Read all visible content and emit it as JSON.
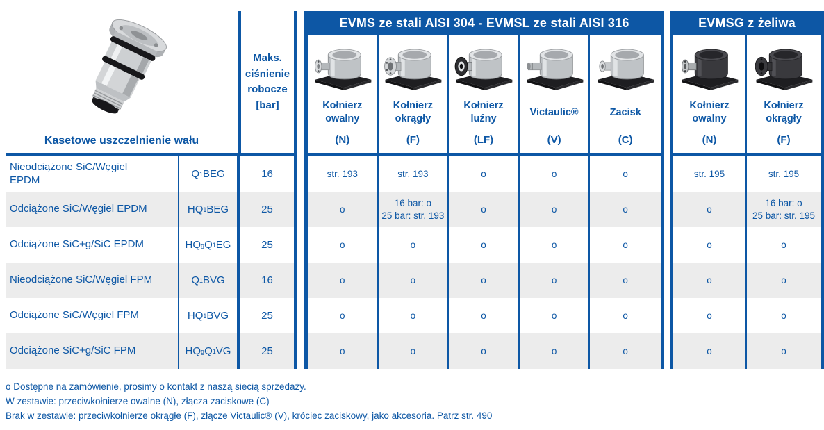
{
  "colors": {
    "brand_blue": "#0d57a5",
    "row_alt_gray": "#ececec",
    "band_text": "#ffffff"
  },
  "left_table": {
    "title": "Kasetowe uszczelnienie wału",
    "pressure_header": "Maks.\nciśnienie\nrobocze\n[bar]",
    "seal_icon": "cartridge-seal-icon"
  },
  "groups": [
    {
      "title": "EVMS ze stali AISI 304 - EVMSL ze stali AISI 316",
      "columns": [
        {
          "label": "Kołnierz\nowalny",
          "code": "(N)",
          "icon": "pump-casing-oval-flange-steel-icon"
        },
        {
          "label": "Kołnierz\nokrągły",
          "code": "(F)",
          "icon": "pump-casing-round-flange-steel-icon"
        },
        {
          "label": "Kołnierz\nluźny",
          "code": "(LF)",
          "icon": "pump-casing-loose-flange-steel-icon"
        },
        {
          "label": "Victaulic®",
          "code": "(V)",
          "icon": "pump-casing-victaulic-steel-icon"
        },
        {
          "label": "Zacisk",
          "code": "(C)",
          "icon": "pump-casing-clamp-steel-icon"
        }
      ]
    },
    {
      "title": "EVMSG z żeliwa",
      "columns": [
        {
          "label": "Kołnierz\nowalny",
          "code": "(N)",
          "icon": "pump-casing-oval-flange-iron-icon"
        },
        {
          "label": "Kołnierz\nokrągły",
          "code": "(F)",
          "icon": "pump-casing-round-flange-iron-icon"
        }
      ]
    }
  ],
  "rows": [
    {
      "label": "Nieodciążone SiC/Węgiel\nEPDM",
      "code": "Q_{1}BEG",
      "pressure": "16",
      "cells": [
        "str. 193",
        "str. 193",
        "o",
        "o",
        "o",
        "str. 195",
        "str. 195"
      ]
    },
    {
      "label": "Odciążone SiC/Węgiel EPDM",
      "code": "HQ_{1}BEG",
      "pressure": "25",
      "cells": [
        "o",
        "16 bar: o\n25 bar: str. 193",
        "o",
        "o",
        "o",
        "o",
        "16 bar: o\n25 bar: str. 195"
      ]
    },
    {
      "label": "Odciążone SiC+g/SiC EPDM",
      "code": "HQ_{g}Q_{1}EG",
      "pressure": "25",
      "cells": [
        "o",
        "o",
        "o",
        "o",
        "o",
        "o",
        "o"
      ]
    },
    {
      "label": "Nieodciążone SiC/Węgiel FPM",
      "code": "Q_{1}BVG",
      "pressure": "16",
      "cells": [
        "o",
        "o",
        "o",
        "o",
        "o",
        "o",
        "o"
      ]
    },
    {
      "label": "Odciążone SiC/Węgiel FPM",
      "code": "HQ_{1}BVG",
      "pressure": "25",
      "cells": [
        "o",
        "o",
        "o",
        "o",
        "o",
        "o",
        "o"
      ]
    },
    {
      "label": "Odciążone SiC+g/SiC FPM",
      "code": "HQ_{g}Q_{1}VG",
      "pressure": "25",
      "cells": [
        "o",
        "o",
        "o",
        "o",
        "o",
        "o",
        "o"
      ]
    }
  ],
  "footnotes": [
    "o Dostępne na zamówienie, prosimy o kontakt z naszą siecią sprzedaży.",
    "W zestawie: przeciwkołnierze owalne (N), złącza zaciskowe (C)",
    "Brak w zestawie: przeciwkołnierze okrągłe (F), złącze Victaulic® (V), króciec zaciskowy, jako akcesoria. Patrz str. 490"
  ]
}
